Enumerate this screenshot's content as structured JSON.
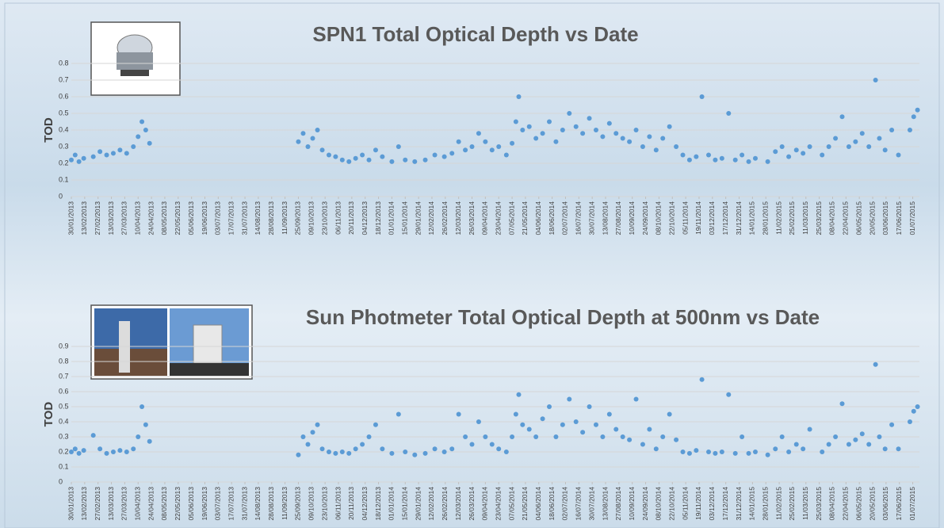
{
  "chart_data": [
    {
      "type": "scatter",
      "title": "SPN1 Total Optical Depth vs Date",
      "ylabel": "TOD",
      "color": "#5b9bd5",
      "grid": true,
      "ylim": [
        0,
        0.8
      ],
      "yticks": [
        0,
        0.1,
        0.2,
        0.3,
        0.4,
        0.5,
        0.6,
        0.7,
        0.8
      ],
      "xlim": [
        "30/01/2013",
        "08/07/2015"
      ],
      "xticks": [
        "30/01/2013",
        "13/02/2013",
        "27/02/2013",
        "13/03/2013",
        "27/03/2013",
        "10/04/2013",
        "24/04/2013",
        "08/05/2013",
        "22/05/2013",
        "05/06/2013",
        "19/06/2013",
        "03/07/2013",
        "17/07/2013",
        "31/07/2013",
        "14/08/2013",
        "28/08/2013",
        "11/09/2013",
        "25/09/2013",
        "09/10/2013",
        "23/10/2013",
        "06/11/2013",
        "20/11/2013",
        "04/12/2013",
        "18/12/2013",
        "01/01/2014",
        "15/01/2014",
        "29/01/2014",
        "12/02/2014",
        "26/02/2014",
        "12/03/2014",
        "26/03/2014",
        "09/04/2014",
        "23/04/2014",
        "07/05/2014",
        "21/05/2014",
        "04/06/2014",
        "18/06/2014",
        "02/07/2014",
        "16/07/2014",
        "30/07/2014",
        "13/08/2014",
        "27/08/2014",
        "10/09/2014",
        "24/09/2014",
        "08/10/2014",
        "22/10/2014",
        "05/11/2014",
        "19/11/2014",
        "03/12/2014",
        "17/12/2014",
        "31/12/2014",
        "14/01/2015",
        "28/01/2015",
        "11/02/2015",
        "25/02/2015",
        "11/03/2015",
        "25/03/2015",
        "08/04/2015",
        "22/04/2015",
        "06/05/2015",
        "20/05/2015",
        "03/06/2015",
        "17/06/2015",
        "01/07/2015"
      ],
      "x": [
        "30/01/2013",
        "03/02/2013",
        "07/02/2013",
        "12/02/2013",
        "22/02/2013",
        "01/03/2013",
        "08/03/2013",
        "15/03/2013",
        "22/03/2013",
        "29/03/2013",
        "05/04/2013",
        "10/04/2013",
        "14/04/2013",
        "18/04/2013",
        "22/04/2013",
        "25/09/2013",
        "30/09/2013",
        "05/10/2013",
        "10/10/2013",
        "15/10/2013",
        "20/10/2013",
        "27/10/2013",
        "03/11/2013",
        "10/11/2013",
        "17/11/2013",
        "24/11/2013",
        "01/12/2013",
        "08/12/2013",
        "15/12/2013",
        "22/12/2013",
        "01/01/2014",
        "08/01/2014",
        "15/01/2014",
        "25/01/2014",
        "05/02/2014",
        "15/02/2014",
        "25/02/2014",
        "05/03/2014",
        "12/03/2014",
        "19/03/2014",
        "26/03/2014",
        "02/04/2014",
        "09/04/2014",
        "16/04/2014",
        "23/04/2014",
        "01/05/2014",
        "07/05/2014",
        "11/05/2014",
        "14/05/2014",
        "18/05/2014",
        "25/05/2014",
        "01/06/2014",
        "08/06/2014",
        "15/06/2014",
        "22/06/2014",
        "29/06/2014",
        "06/07/2014",
        "13/07/2014",
        "20/07/2014",
        "27/07/2014",
        "03/08/2014",
        "10/08/2014",
        "17/08/2014",
        "24/08/2014",
        "31/08/2014",
        "07/09/2014",
        "14/09/2014",
        "21/09/2014",
        "28/09/2014",
        "05/10/2014",
        "12/10/2014",
        "19/10/2014",
        "26/10/2014",
        "02/11/2014",
        "09/11/2014",
        "16/11/2014",
        "22/11/2014",
        "29/11/2014",
        "06/12/2014",
        "13/12/2014",
        "20/12/2014",
        "27/12/2014",
        "03/01/2015",
        "10/01/2015",
        "17/01/2015",
        "30/01/2015",
        "07/02/2015",
        "14/02/2015",
        "21/02/2015",
        "01/03/2015",
        "08/03/2015",
        "15/03/2015",
        "28/03/2015",
        "04/04/2015",
        "11/04/2015",
        "18/04/2015",
        "25/04/2015",
        "02/05/2015",
        "09/05/2015",
        "16/05/2015",
        "23/05/2015",
        "27/05/2015",
        "02/06/2015",
        "09/06/2015",
        "16/06/2015",
        "28/06/2015",
        "02/07/2015",
        "06/07/2015"
      ],
      "values": [
        0.22,
        0.25,
        0.21,
        0.23,
        0.24,
        0.27,
        0.25,
        0.26,
        0.28,
        0.26,
        0.3,
        0.36,
        0.45,
        0.4,
        0.32,
        0.33,
        0.38,
        0.3,
        0.35,
        0.4,
        0.28,
        0.25,
        0.24,
        0.22,
        0.21,
        0.23,
        0.25,
        0.22,
        0.28,
        0.24,
        0.21,
        0.3,
        0.22,
        0.21,
        0.22,
        0.25,
        0.24,
        0.26,
        0.33,
        0.28,
        0.3,
        0.38,
        0.33,
        0.28,
        0.3,
        0.25,
        0.32,
        0.45,
        0.6,
        0.4,
        0.42,
        0.35,
        0.38,
        0.45,
        0.33,
        0.4,
        0.5,
        0.42,
        0.38,
        0.47,
        0.4,
        0.36,
        0.44,
        0.38,
        0.35,
        0.33,
        0.4,
        0.3,
        0.36,
        0.28,
        0.35,
        0.42,
        0.3,
        0.25,
        0.22,
        0.24,
        0.6,
        0.25,
        0.22,
        0.23,
        0.5,
        0.22,
        0.25,
        0.21,
        0.23,
        0.21,
        0.27,
        0.3,
        0.24,
        0.28,
        0.26,
        0.3,
        0.25,
        0.3,
        0.35,
        0.48,
        0.3,
        0.33,
        0.38,
        0.3,
        0.7,
        0.35,
        0.28,
        0.4,
        0.25,
        0.4,
        0.48,
        0.52
      ]
    },
    {
      "type": "scatter",
      "title": "Sun Photmeter Total Optical Depth at 500nm vs Date",
      "ylabel": "TOD",
      "color": "#5b9bd5",
      "grid": true,
      "ylim": [
        0,
        0.9
      ],
      "yticks": [
        0,
        0.1,
        0.2,
        0.3,
        0.4,
        0.5,
        0.6,
        0.7,
        0.8,
        0.9
      ],
      "xlim": [
        "30/01/2013",
        "08/07/2015"
      ],
      "xticks": [
        "30/01/2013",
        "13/02/2013",
        "27/02/2013",
        "13/03/2013",
        "27/03/2013",
        "10/04/2013",
        "24/04/2013",
        "08/05/2013",
        "22/05/2013",
        "05/06/2013",
        "19/06/2013",
        "03/07/2013",
        "17/07/2013",
        "31/07/2013",
        "14/08/2013",
        "28/08/2013",
        "11/09/2013",
        "25/09/2013",
        "09/10/2013",
        "23/10/2013",
        "06/11/2013",
        "20/11/2013",
        "04/12/2013",
        "18/12/2013",
        "01/01/2014",
        "15/01/2014",
        "29/01/2014",
        "12/02/2014",
        "26/02/2014",
        "12/03/2014",
        "26/03/2014",
        "09/04/2014",
        "23/04/2014",
        "07/05/2014",
        "21/05/2014",
        "04/06/2014",
        "18/06/2014",
        "02/07/2014",
        "16/07/2014",
        "30/07/2014",
        "13/08/2014",
        "27/08/2014",
        "10/09/2014",
        "24/09/2014",
        "08/10/2014",
        "22/10/2014",
        "05/11/2014",
        "19/11/2014",
        "03/12/2014",
        "17/12/2014",
        "31/12/2014",
        "14/01/2015",
        "28/01/2015",
        "11/02/2015",
        "25/02/2015",
        "11/03/2015",
        "25/03/2015",
        "08/04/2015",
        "22/04/2015",
        "06/05/2015",
        "20/05/2015",
        "03/06/2015",
        "17/06/2015",
        "01/07/2015"
      ],
      "x": [
        "30/01/2013",
        "03/02/2013",
        "07/02/2013",
        "12/02/2013",
        "22/02/2013",
        "01/03/2013",
        "08/03/2013",
        "15/03/2013",
        "22/03/2013",
        "29/03/2013",
        "05/04/2013",
        "10/04/2013",
        "14/04/2013",
        "18/04/2013",
        "22/04/2013",
        "25/09/2013",
        "30/09/2013",
        "05/10/2013",
        "10/10/2013",
        "15/10/2013",
        "20/10/2013",
        "27/10/2013",
        "03/11/2013",
        "10/11/2013",
        "17/11/2013",
        "24/11/2013",
        "01/12/2013",
        "08/12/2013",
        "15/12/2013",
        "22/12/2013",
        "01/01/2014",
        "08/01/2014",
        "15/01/2014",
        "25/01/2014",
        "05/02/2014",
        "15/02/2014",
        "25/02/2014",
        "05/03/2014",
        "12/03/2014",
        "19/03/2014",
        "26/03/2014",
        "02/04/2014",
        "09/04/2014",
        "16/04/2014",
        "23/04/2014",
        "01/05/2014",
        "07/05/2014",
        "11/05/2014",
        "14/05/2014",
        "18/05/2014",
        "25/05/2014",
        "01/06/2014",
        "08/06/2014",
        "15/06/2014",
        "22/06/2014",
        "29/06/2014",
        "06/07/2014",
        "13/07/2014",
        "20/07/2014",
        "27/07/2014",
        "03/08/2014",
        "10/08/2014",
        "17/08/2014",
        "24/08/2014",
        "31/08/2014",
        "07/09/2014",
        "14/09/2014",
        "21/09/2014",
        "28/09/2014",
        "05/10/2014",
        "12/10/2014",
        "19/10/2014",
        "26/10/2014",
        "02/11/2014",
        "09/11/2014",
        "16/11/2014",
        "22/11/2014",
        "29/11/2014",
        "06/12/2014",
        "13/12/2014",
        "20/12/2014",
        "27/12/2014",
        "03/01/2015",
        "10/01/2015",
        "17/01/2015",
        "30/01/2015",
        "07/02/2015",
        "14/02/2015",
        "21/02/2015",
        "01/03/2015",
        "08/03/2015",
        "15/03/2015",
        "28/03/2015",
        "04/04/2015",
        "11/04/2015",
        "18/04/2015",
        "25/04/2015",
        "02/05/2015",
        "09/05/2015",
        "16/05/2015",
        "23/05/2015",
        "27/05/2015",
        "02/06/2015",
        "09/06/2015",
        "16/06/2015",
        "28/06/2015",
        "02/07/2015",
        "06/07/2015"
      ],
      "values": [
        0.2,
        0.22,
        0.19,
        0.21,
        0.31,
        0.22,
        0.19,
        0.2,
        0.21,
        0.2,
        0.22,
        0.3,
        0.5,
        0.38,
        0.27,
        0.18,
        0.3,
        0.25,
        0.33,
        0.38,
        0.22,
        0.2,
        0.19,
        0.2,
        0.19,
        0.22,
        0.25,
        0.3,
        0.38,
        0.22,
        0.19,
        0.45,
        0.2,
        0.18,
        0.19,
        0.22,
        0.2,
        0.22,
        0.45,
        0.3,
        0.25,
        0.4,
        0.3,
        0.25,
        0.22,
        0.2,
        0.3,
        0.45,
        0.58,
        0.38,
        0.35,
        0.3,
        0.42,
        0.5,
        0.3,
        0.38,
        0.55,
        0.4,
        0.33,
        0.5,
        0.38,
        0.3,
        0.45,
        0.35,
        0.3,
        0.28,
        0.55,
        0.25,
        0.35,
        0.22,
        0.3,
        0.45,
        0.28,
        0.2,
        0.19,
        0.21,
        0.68,
        0.2,
        0.19,
        0.2,
        0.58,
        0.19,
        0.3,
        0.19,
        0.2,
        0.18,
        0.22,
        0.3,
        0.2,
        0.25,
        0.22,
        0.35,
        0.2,
        0.25,
        0.3,
        0.52,
        0.25,
        0.28,
        0.32,
        0.25,
        0.78,
        0.3,
        0.22,
        0.38,
        0.22,
        0.4,
        0.47,
        0.5
      ]
    }
  ]
}
